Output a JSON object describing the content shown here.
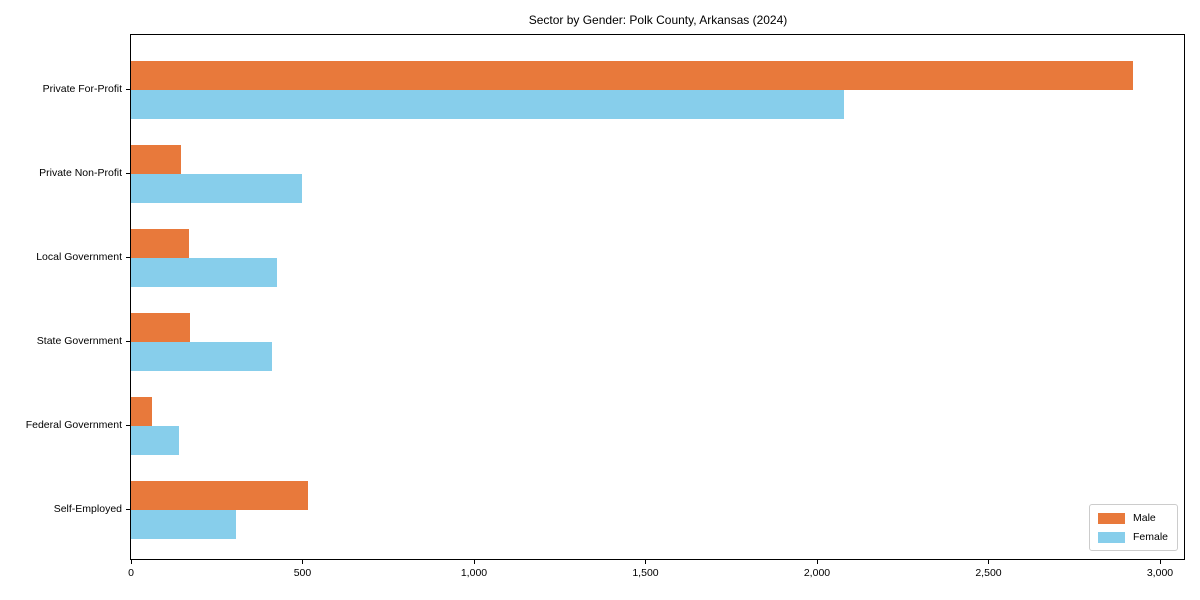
{
  "title": "Sector by Gender: Polk County, Arkansas (2024)",
  "chart_data": {
    "type": "bar",
    "orientation": "horizontal",
    "title": "Sector by Gender: Polk County, Arkansas (2024)",
    "categories": [
      "Private For-Profit",
      "Private Non-Profit",
      "Local Government",
      "State Government",
      "Federal Government",
      "Self-Employed"
    ],
    "series": [
      {
        "name": "Male",
        "color": "#e8793b",
        "values": [
          2920,
          145,
          170,
          172,
          60,
          515
        ]
      },
      {
        "name": "Female",
        "color": "#87ceeb",
        "values": [
          2080,
          500,
          425,
          410,
          140,
          305
        ]
      }
    ],
    "xlabel": "",
    "ylabel": "",
    "xlim": [
      0,
      3070
    ],
    "xticks": [
      0,
      500,
      1000,
      1500,
      2000,
      2500,
      3000
    ],
    "xtick_labels": [
      "0",
      "500",
      "1,000",
      "1,500",
      "2,000",
      "2,500",
      "3,000"
    ],
    "grid": false,
    "legend_position": "lower right"
  }
}
